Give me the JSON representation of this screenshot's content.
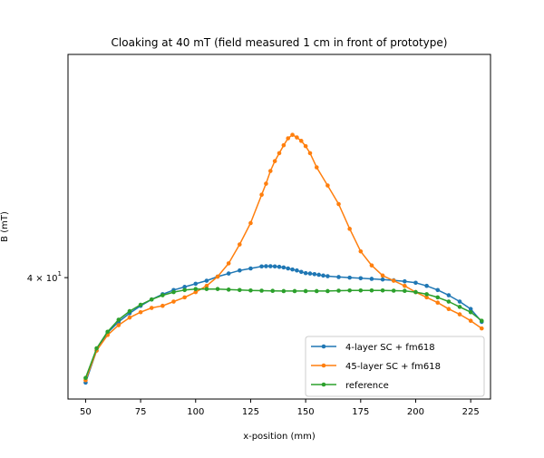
{
  "chart_data": {
    "type": "line",
    "title": "Cloaking at 40 mT (field measured 1 cm in front of prototype)",
    "xlabel": "x-position (mm)",
    "ylabel": "B (mT)",
    "yscale": "log",
    "xlim": [
      42,
      234
    ],
    "ylim": [
      34.5,
      52.5
    ],
    "x_ticks": [
      50,
      75,
      100,
      125,
      150,
      175,
      200,
      225
    ],
    "x_tick_labels": [
      "50",
      "75",
      "100",
      "125",
      "150",
      "175",
      "200",
      "225"
    ],
    "y_ticks": [
      40
    ],
    "y_tick_labels": [
      "4 × 10",
      "1"
    ],
    "grid": false,
    "legend_position": "lower right",
    "series": [
      {
        "name": " 4-layer SC + fm618",
        "color": "#1f77b4",
        "x": [
          50,
          55,
          60,
          65,
          70,
          75,
          80,
          85,
          90,
          95,
          100,
          105,
          110,
          115,
          120,
          125,
          130,
          132,
          134,
          136,
          138,
          140,
          142,
          144,
          146,
          148,
          150,
          152,
          154,
          156,
          158,
          160,
          165,
          170,
          175,
          180,
          185,
          190,
          195,
          200,
          205,
          210,
          215,
          220,
          225,
          230
        ],
        "y": [
          35.2,
          36.6,
          37.4,
          37.9,
          38.3,
          38.65,
          38.95,
          39.2,
          39.4,
          39.55,
          39.7,
          39.85,
          40.05,
          40.2,
          40.35,
          40.45,
          40.55,
          40.56,
          40.56,
          40.55,
          40.53,
          40.5,
          40.45,
          40.4,
          40.35,
          40.28,
          40.22,
          40.2,
          40.17,
          40.14,
          40.1,
          40.07,
          40.03,
          40.0,
          39.97,
          39.94,
          39.91,
          39.87,
          39.82,
          39.75,
          39.6,
          39.4,
          39.15,
          38.85,
          38.5,
          37.9
        ],
        "marker": "circle"
      },
      {
        "name": "45-layer SC + fm618",
        "color": "#ff7f0e",
        "x": [
          50,
          55,
          60,
          65,
          70,
          75,
          80,
          85,
          90,
          95,
          100,
          105,
          110,
          115,
          120,
          125,
          130,
          132,
          134,
          136,
          138,
          140,
          142,
          144,
          146,
          148,
          150,
          152,
          155,
          160,
          165,
          170,
          175,
          180,
          185,
          190,
          195,
          200,
          205,
          210,
          215,
          220,
          225,
          230
        ],
        "y": [
          35.3,
          36.6,
          37.3,
          37.75,
          38.1,
          38.35,
          38.55,
          38.65,
          38.85,
          39.05,
          39.3,
          39.6,
          40.05,
          40.7,
          41.65,
          42.75,
          44.25,
          44.85,
          45.55,
          46.1,
          46.55,
          47.0,
          47.4,
          47.6,
          47.45,
          47.25,
          46.95,
          46.55,
          45.75,
          44.75,
          43.75,
          42.45,
          41.3,
          40.6,
          40.1,
          39.85,
          39.6,
          39.3,
          39.05,
          38.8,
          38.5,
          38.25,
          37.95,
          37.6
        ],
        "marker": "circle"
      },
      {
        "name": "reference",
        "color": "#2ca02c",
        "x": [
          50,
          55,
          60,
          65,
          70,
          75,
          80,
          85,
          90,
          95,
          100,
          105,
          110,
          115,
          120,
          125,
          130,
          135,
          140,
          145,
          150,
          155,
          160,
          165,
          170,
          175,
          180,
          185,
          190,
          195,
          200,
          205,
          210,
          215,
          220,
          225,
          230
        ],
        "y": [
          35.4,
          36.7,
          37.45,
          38.0,
          38.4,
          38.7,
          38.95,
          39.15,
          39.3,
          39.4,
          39.45,
          39.45,
          39.45,
          39.42,
          39.4,
          39.38,
          39.37,
          39.36,
          39.35,
          39.35,
          39.35,
          39.35,
          39.35,
          39.37,
          39.38,
          39.38,
          39.38,
          39.38,
          39.37,
          39.36,
          39.3,
          39.2,
          39.05,
          38.85,
          38.6,
          38.35,
          37.95
        ],
        "marker": "circle"
      }
    ]
  }
}
